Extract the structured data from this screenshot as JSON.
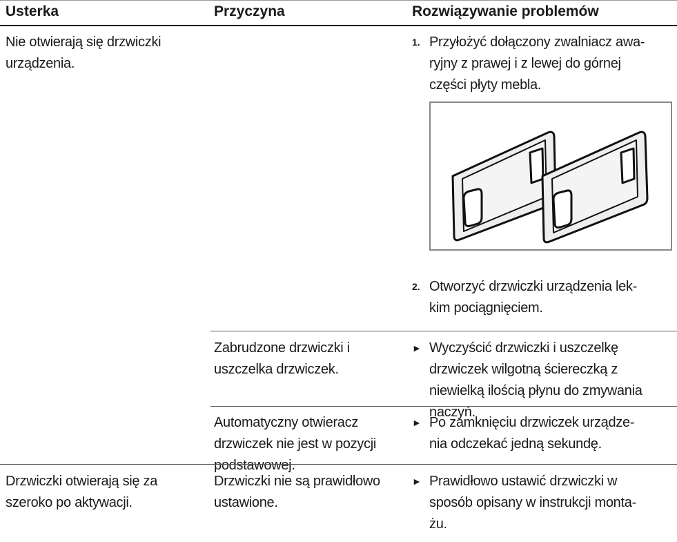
{
  "table": {
    "header": [
      "Usterka",
      "Przyczyna",
      "Rozwiązywanie problemów"
    ],
    "rows": [
      {
        "fault": "Nie otwierają się drzwiczki\nurządzenia.",
        "steps": [
          {
            "marker": "1.",
            "text": "Przyłożyć dołączony zwalniacz awa-\nryjny z prawej i z lewej do górnej\nczęści płyty mebla."
          },
          {
            "marker": "2.",
            "text": "Otworzyć drzwiczki urządzenia lek-\nkim pociągnięciem."
          }
        ]
      },
      {
        "cause": "Zabrudzone drzwiczki i\nuszczelka drzwiczek.",
        "steps": [
          {
            "marker": "►",
            "text": "Wyczyścić drzwiczki i uszczelkę\ndrzwiczek wilgotną ściereczką z\nniewielką ilością płynu do zmywania\nnaczyń."
          }
        ]
      },
      {
        "cause": "Automatyczny otwieracz\ndrzwiczek nie jest w pozycji\npodstawowej.",
        "steps": [
          {
            "marker": "►",
            "text": "Po zamknięciu drzwiczek urządze-\nnia odczekać jedną sekundę."
          }
        ]
      },
      {
        "fault": "Drzwiczki otwierają się za\nszeroko po aktywacji.",
        "cause": "Drzwiczki nie są prawidłowo\nustawione.",
        "steps": [
          {
            "marker": "►",
            "text": "Prawidłowo ustawić drzwiczki w\nsposób opisany w instrukcji monta-\nżu."
          }
        ]
      }
    ]
  }
}
